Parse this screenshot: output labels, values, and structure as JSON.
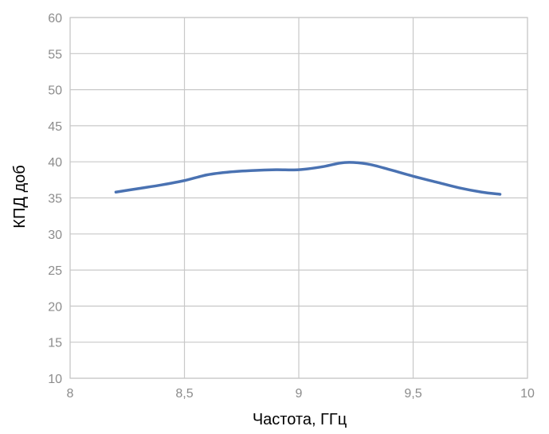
{
  "chart_data": {
    "type": "line",
    "title": "",
    "xlabel": "Частота, ГГц",
    "ylabel": "КПД доб",
    "xlim": [
      8,
      10
    ],
    "ylim": [
      10,
      60
    ],
    "xticks": [
      8,
      8.5,
      9,
      9.5,
      10
    ],
    "xtick_labels": [
      "8",
      "8,5",
      "9",
      "9,5",
      "10"
    ],
    "yticks": [
      10,
      15,
      20,
      25,
      30,
      35,
      40,
      45,
      50,
      55,
      60
    ],
    "ytick_labels": [
      "10",
      "15",
      "20",
      "25",
      "30",
      "35",
      "40",
      "45",
      "50",
      "55",
      "60"
    ],
    "grid": true,
    "legend": false,
    "series": [
      {
        "color": "#4a72b2",
        "x": [
          8.2,
          8.3,
          8.4,
          8.5,
          8.6,
          8.7,
          8.8,
          8.9,
          9.0,
          9.1,
          9.2,
          9.3,
          9.4,
          9.5,
          9.6,
          9.7,
          9.8,
          9.88
        ],
        "y": [
          35.8,
          36.3,
          36.8,
          37.4,
          38.2,
          38.6,
          38.8,
          38.9,
          38.9,
          39.3,
          39.9,
          39.7,
          38.9,
          38.0,
          37.2,
          36.4,
          35.8,
          35.5
        ]
      }
    ]
  }
}
